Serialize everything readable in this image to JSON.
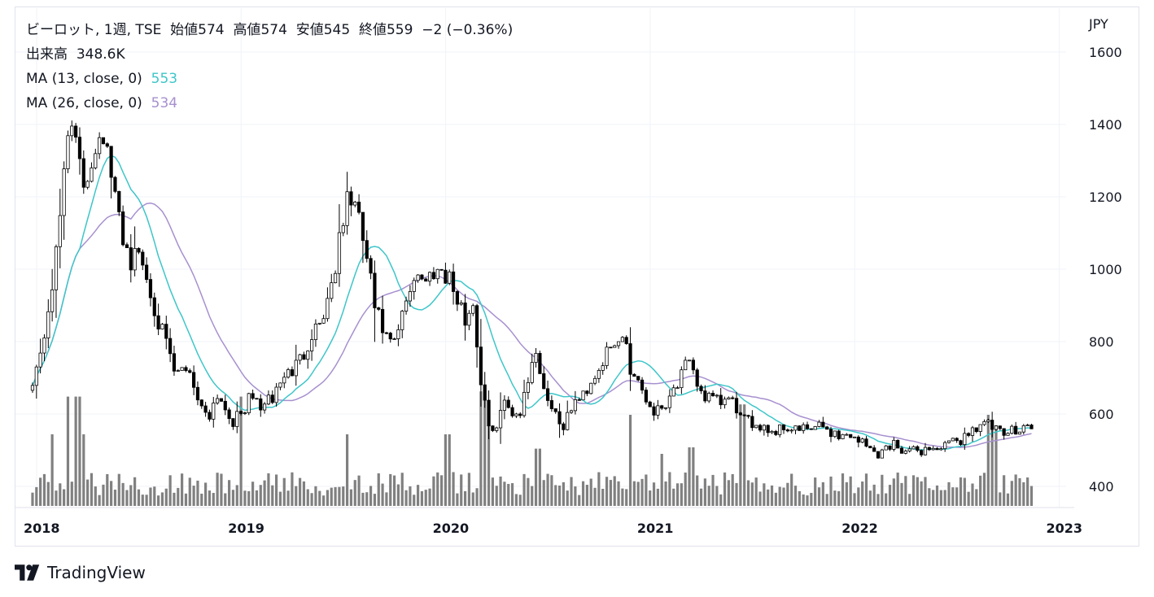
{
  "legend": {
    "symbol": "ビーロット, 1週, TSE",
    "open_label": "始値",
    "open": "574",
    "high_label": "高値",
    "high": "574",
    "low_label": "安値",
    "low": "545",
    "close_label": "終値",
    "close": "559",
    "change": "−2 (−0.36%)",
    "volume_label": "出来高",
    "volume": "348.6K",
    "ma13_label": "MA (13, close, 0)",
    "ma13_value": "553",
    "ma26_label": "MA (26, close, 0)",
    "ma26_value": "534"
  },
  "currency": "JPY",
  "footer": {
    "brand": "TradingView"
  },
  "colors": {
    "candle_up": "#ffffff",
    "candle_down": "#000000",
    "candle_border": "#000000",
    "ma13": "#3ec6c9",
    "ma26": "#a790cf",
    "volume": "#808080",
    "grid": "#f0f3fa"
  },
  "chart_data": {
    "type": "candlestick",
    "y_ticks": [
      "1600",
      "1400",
      "1200",
      "1000",
      "800",
      "600",
      "400"
    ],
    "y_tick_values": [
      1600,
      1400,
      1200,
      1000,
      800,
      600,
      400
    ],
    "ylim": [
      350,
      1650
    ],
    "x_ticks": [
      "2018",
      "2019",
      "2020",
      "2021",
      "2022",
      "2023"
    ],
    "x_tick_values": [
      2018,
      2019,
      2020,
      2021,
      2022,
      2023
    ],
    "xlim": [
      2017.97,
      2022.97
    ],
    "close_anchors": [
      [
        2017.98,
        700
      ],
      [
        2018.02,
        760
      ],
      [
        2018.06,
        900
      ],
      [
        2018.1,
        1050
      ],
      [
        2018.13,
        1250
      ],
      [
        2018.15,
        1380
      ],
      [
        2018.17,
        1440
      ],
      [
        2018.2,
        1300
      ],
      [
        2018.23,
        1230
      ],
      [
        2018.26,
        1280
      ],
      [
        2018.29,
        1350
      ],
      [
        2018.32,
        1400
      ],
      [
        2018.35,
        1300
      ],
      [
        2018.38,
        1200
      ],
      [
        2018.42,
        1100
      ],
      [
        2018.46,
        1020
      ],
      [
        2018.5,
        1050
      ],
      [
        2018.55,
        950
      ],
      [
        2018.6,
        850
      ],
      [
        2018.65,
        760
      ],
      [
        2018.68,
        700
      ],
      [
        2018.72,
        730
      ],
      [
        2018.75,
        720
      ],
      [
        2018.8,
        620
      ],
      [
        2018.85,
        600
      ],
      [
        2018.88,
        660
      ],
      [
        2018.92,
        620
      ],
      [
        2018.96,
        580
      ],
      [
        2019.0,
        600
      ],
      [
        2019.05,
        650
      ],
      [
        2019.1,
        620
      ],
      [
        2019.15,
        640
      ],
      [
        2019.2,
        700
      ],
      [
        2019.25,
        720
      ],
      [
        2019.3,
        760
      ],
      [
        2019.35,
        830
      ],
      [
        2019.4,
        870
      ],
      [
        2019.45,
        980
      ],
      [
        2019.49,
        1100
      ],
      [
        2019.52,
        1200
      ],
      [
        2019.55,
        1190
      ],
      [
        2019.58,
        1120
      ],
      [
        2019.62,
        1020
      ],
      [
        2019.65,
        900
      ],
      [
        2019.7,
        820
      ],
      [
        2019.74,
        780
      ],
      [
        2019.78,
        850
      ],
      [
        2019.82,
        940
      ],
      [
        2019.86,
        1000
      ],
      [
        2019.9,
        960
      ],
      [
        2019.94,
        1000
      ],
      [
        2019.98,
        1000
      ],
      [
        2020.02,
        980
      ],
      [
        2020.06,
        900
      ],
      [
        2020.1,
        860
      ],
      [
        2020.14,
        920
      ],
      [
        2020.16,
        720
      ],
      [
        2020.19,
        650
      ],
      [
        2020.22,
        520
      ],
      [
        2020.25,
        580
      ],
      [
        2020.28,
        630
      ],
      [
        2020.32,
        610
      ],
      [
        2020.36,
        600
      ],
      [
        2020.4,
        680
      ],
      [
        2020.43,
        790
      ],
      [
        2020.46,
        720
      ],
      [
        2020.5,
        640
      ],
      [
        2020.54,
        600
      ],
      [
        2020.58,
        560
      ],
      [
        2020.62,
        630
      ],
      [
        2020.66,
        640
      ],
      [
        2020.7,
        680
      ],
      [
        2020.74,
        720
      ],
      [
        2020.78,
        760
      ],
      [
        2020.82,
        780
      ],
      [
        2020.86,
        810
      ],
      [
        2020.88,
        820
      ],
      [
        2020.9,
        720
      ],
      [
        2020.94,
        700
      ],
      [
        2020.98,
        640
      ],
      [
        2021.02,
        610
      ],
      [
        2021.06,
        620
      ],
      [
        2021.1,
        660
      ],
      [
        2021.14,
        690
      ],
      [
        2021.18,
        740
      ],
      [
        2021.22,
        700
      ],
      [
        2021.26,
        650
      ],
      [
        2021.3,
        640
      ],
      [
        2021.34,
        630
      ],
      [
        2021.38,
        640
      ],
      [
        2021.42,
        620
      ],
      [
        2021.45,
        580
      ],
      [
        2021.5,
        575
      ],
      [
        2021.55,
        570
      ],
      [
        2021.6,
        550
      ],
      [
        2021.65,
        565
      ],
      [
        2021.7,
        560
      ],
      [
        2021.75,
        555
      ],
      [
        2021.8,
        560
      ],
      [
        2021.85,
        565
      ],
      [
        2021.9,
        545
      ],
      [
        2021.95,
        540
      ],
      [
        2022.0,
        540
      ],
      [
        2022.04,
        520
      ],
      [
        2022.08,
        500
      ],
      [
        2022.12,
        490
      ],
      [
        2022.16,
        510
      ],
      [
        2022.2,
        520
      ],
      [
        2022.24,
        500
      ],
      [
        2022.28,
        495
      ],
      [
        2022.32,
        500
      ],
      [
        2022.36,
        505
      ],
      [
        2022.4,
        505
      ],
      [
        2022.44,
        510
      ],
      [
        2022.48,
        520
      ],
      [
        2022.52,
        530
      ],
      [
        2022.56,
        550
      ],
      [
        2022.6,
        570
      ],
      [
        2022.64,
        575
      ],
      [
        2022.68,
        560
      ],
      [
        2022.72,
        540
      ],
      [
        2022.76,
        550
      ],
      [
        2022.8,
        565
      ],
      [
        2022.84,
        570
      ],
      [
        2022.87,
        559
      ]
    ],
    "volume_spikes": [
      [
        2018.15,
        0.84
      ],
      [
        2018.2,
        0.84
      ],
      [
        2018.08,
        0.55
      ],
      [
        2018.23,
        0.55
      ],
      [
        2019.0,
        0.84
      ],
      [
        2019.52,
        0.55
      ],
      [
        2020.01,
        0.55
      ],
      [
        2020.18,
        0.88
      ],
      [
        2020.2,
        0.75
      ],
      [
        2020.45,
        0.44
      ],
      [
        2020.9,
        0.7
      ],
      [
        2021.05,
        0.4
      ],
      [
        2021.2,
        0.45
      ],
      [
        2021.45,
        0.78
      ],
      [
        2021.46,
        0.62
      ],
      [
        2022.65,
        0.7
      ],
      [
        2022.68,
        0.62
      ],
      [
        2022.85,
        0.18
      ]
    ]
  }
}
